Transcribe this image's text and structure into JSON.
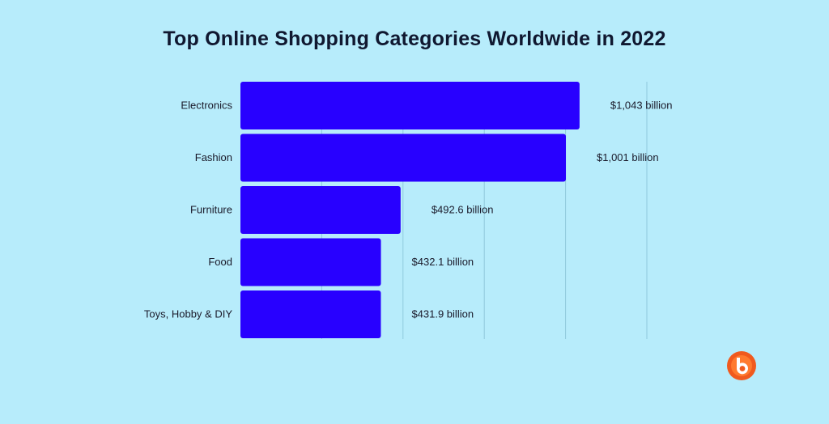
{
  "chart_data": {
    "type": "bar",
    "orientation": "horizontal",
    "title": "Top Online Shopping Categories Worldwide in 2022",
    "categories": [
      "Electronics",
      "Fashion",
      "Furniture",
      "Food",
      "Toys, Hobby & DIY"
    ],
    "values": [
      1043,
      1001,
      492.6,
      432.1,
      431.9
    ],
    "value_labels": [
      "$1,043 billion",
      "$1,001 billion",
      "$492.6 billion",
      "$432.1 billion",
      "$431.9 billion"
    ],
    "unit": "billion USD",
    "xlim": [
      0,
      1250
    ],
    "grid": true,
    "legend": "none"
  },
  "colors": {
    "background": "#b7ecfb",
    "bar": "#2800ff",
    "grid": "#8fc9dc",
    "logo_outer": "#f05a1e",
    "logo_inner": "#ffffff"
  },
  "branding": {
    "logo_icon": "brand-b-logo-icon"
  }
}
